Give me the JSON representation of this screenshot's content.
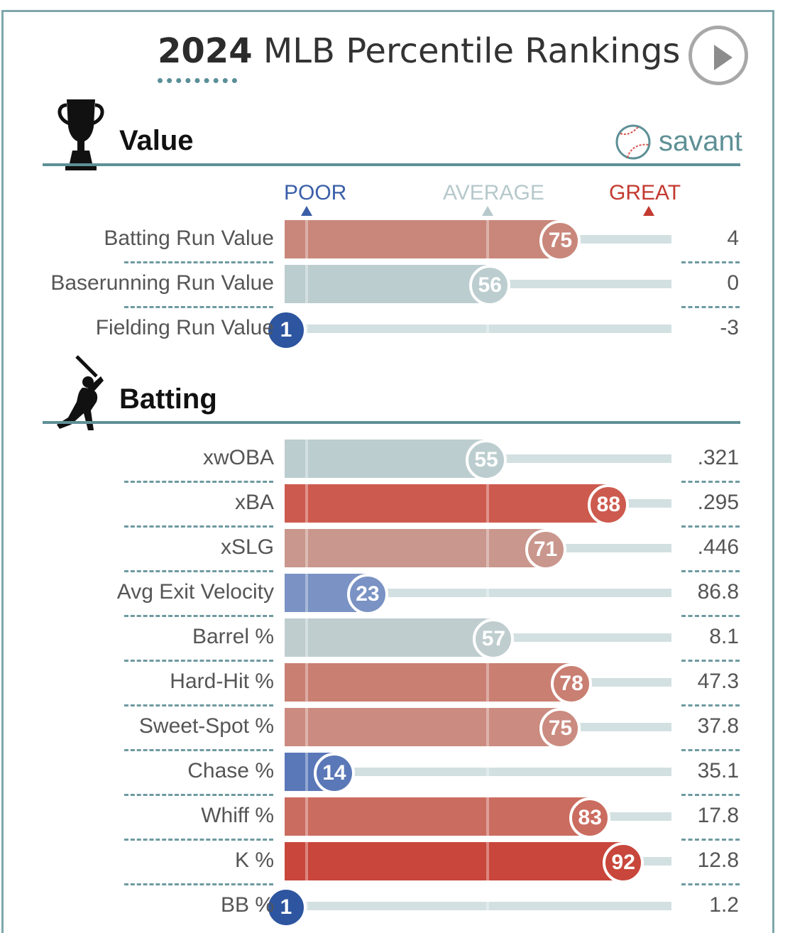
{
  "header": {
    "title_year": "2024",
    "title_rest": " MLB Percentile Rankings",
    "play_button_icon": "play-icon"
  },
  "brand": {
    "text": "savant",
    "icon": "baseball-icon"
  },
  "legend": {
    "poor": "POOR",
    "average": "AVERAGE",
    "great": "GREAT",
    "poor_color": "#3a5fa8",
    "average_color": "#b6c8cb",
    "great_color": "#c33a30"
  },
  "sections": {
    "value": {
      "title": "Value",
      "icon": "trophy-icon"
    },
    "batting": {
      "title": "Batting",
      "icon": "batter-silhouette-icon"
    }
  },
  "chart_data": {
    "type": "bar",
    "scale": "percentile 1-100",
    "groups": [
      {
        "name": "Value",
        "metrics": [
          {
            "label": "Batting Run Value",
            "percentile": 75,
            "value": "4",
            "color": "#c9877b"
          },
          {
            "label": "Baserunning Run Value",
            "percentile": 56,
            "value": "0",
            "color": "#bccdcf"
          },
          {
            "label": "Fielding Run Value",
            "percentile": 1,
            "value": "-3",
            "color": "#2d55a0"
          }
        ]
      },
      {
        "name": "Batting",
        "metrics": [
          {
            "label": "xwOBA",
            "percentile": 55,
            "value": ".321",
            "color": "#bccdcf"
          },
          {
            "label": "xBA",
            "percentile": 88,
            "value": ".295",
            "color": "#cd5a4e"
          },
          {
            "label": "xSLG",
            "percentile": 71,
            "value": ".446",
            "color": "#c9978d"
          },
          {
            "label": "Avg Exit Velocity",
            "percentile": 23,
            "value": "86.8",
            "color": "#7a92c4"
          },
          {
            "label": "Barrel %",
            "percentile": 57,
            "value": "8.1",
            "color": "#bfcdcf"
          },
          {
            "label": "Hard-Hit %",
            "percentile": 78,
            "value": "47.3",
            "color": "#c97f72"
          },
          {
            "label": "Sweet-Spot %",
            "percentile": 75,
            "value": "37.8",
            "color": "#cb8b80"
          },
          {
            "label": "Chase %",
            "percentile": 14,
            "value": "35.1",
            "color": "#5a78b8"
          },
          {
            "label": "Whiff %",
            "percentile": 83,
            "value": "17.8",
            "color": "#cb6c60"
          },
          {
            "label": "K %",
            "percentile": 92,
            "value": "12.8",
            "color": "#c8463b"
          },
          {
            "label": "BB %",
            "percentile": 1,
            "value": "1.2",
            "color": "#2d55a0"
          }
        ]
      }
    ]
  }
}
